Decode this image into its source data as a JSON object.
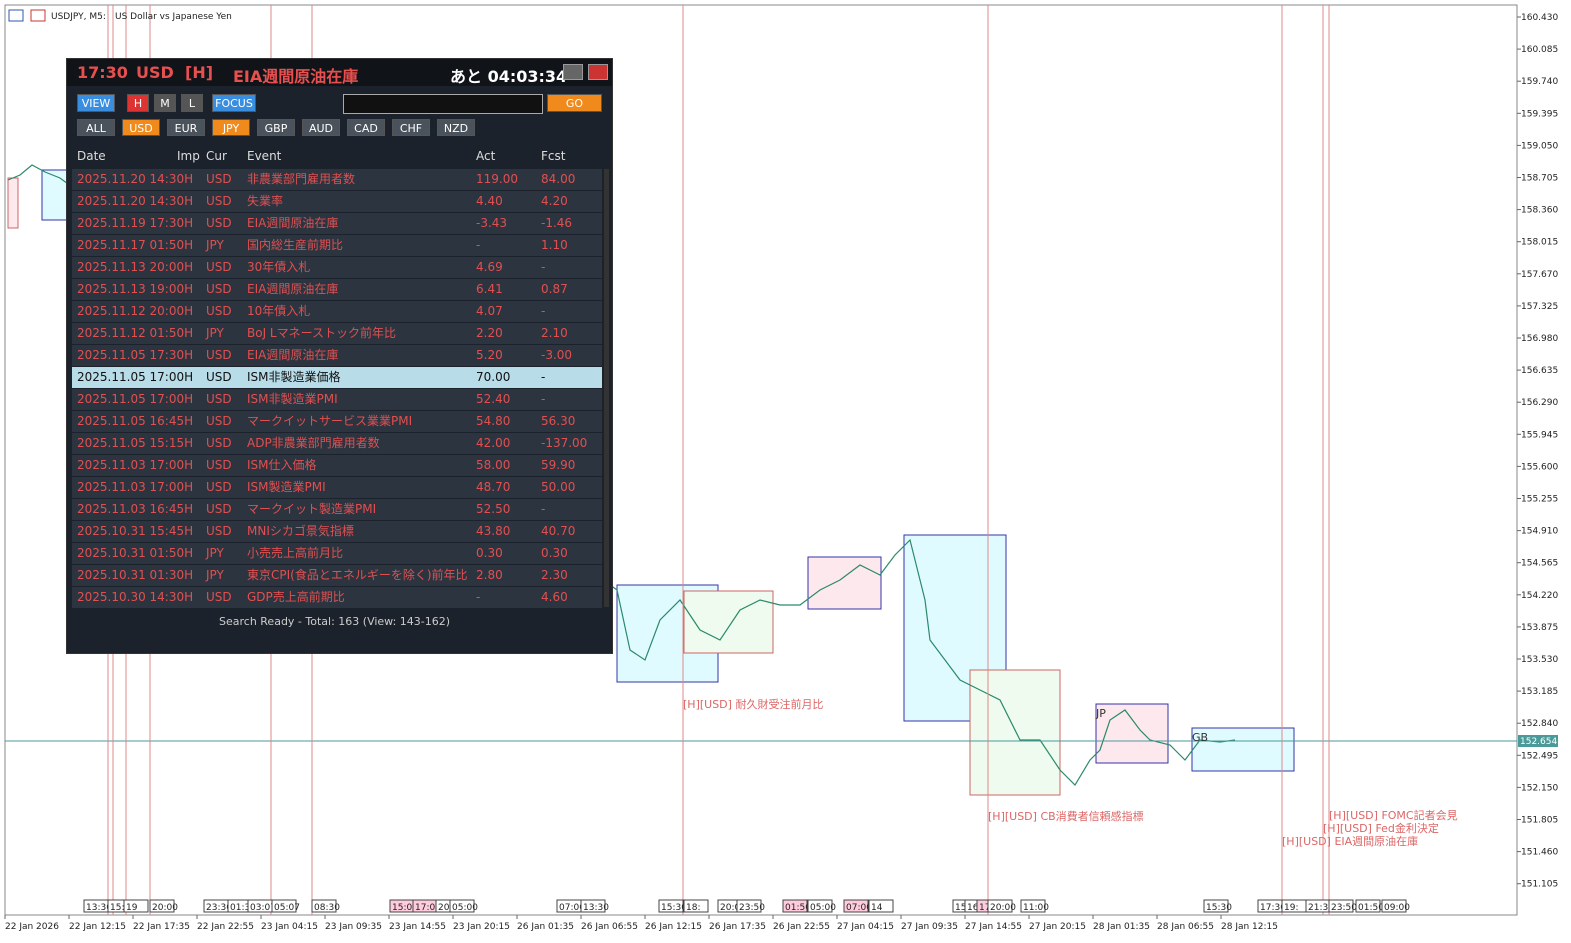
{
  "header": {
    "symbol": "USDJPY, M5:",
    "description": "US Dollar vs Japanese Yen"
  },
  "price_axis": {
    "labels": [
      "160.430",
      "160.085",
      "159.740",
      "159.395",
      "159.050",
      "158.705",
      "158.360",
      "158.015",
      "157.670",
      "157.325",
      "156.980",
      "156.635",
      "156.290",
      "155.945",
      "155.600",
      "155.255",
      "154.910",
      "154.565",
      "154.220",
      "153.875",
      "153.530",
      "153.185",
      "152.840",
      "152.495",
      "152.150",
      "151.805",
      "151.460",
      "151.105"
    ],
    "current": "152.654"
  },
  "time_axis": {
    "labels": [
      "22 Jan 2026",
      "22 Jan 12:15",
      "22 Jan 17:35",
      "22 Jan 22:55",
      "23 Jan 04:15",
      "23 Jan 09:35",
      "23 Jan 14:55",
      "23 Jan 20:15",
      "26 Jan 01:35",
      "26 Jan 06:55",
      "26 Jan 12:15",
      "26 Jan 17:35",
      "26 Jan 22:55",
      "27 Jan 04:15",
      "27 Jan 09:35",
      "27 Jan 14:55",
      "27 Jan 20:15",
      "28 Jan 01:35",
      "28 Jan 06:55",
      "28 Jan 12:15"
    ]
  },
  "event_markers": [
    "13:30",
    "15:0",
    "19",
    "20:00",
    "23:30",
    "01:3",
    "03:07",
    "05:07",
    "08:30",
    "15:00",
    "17:00",
    "20:00",
    "05:00",
    "07:00",
    "13:30",
    "15:30",
    "18:",
    "20:00",
    "23:50",
    "01:50",
    "05:00",
    "07:00",
    "14",
    "15",
    "16",
    "17:00",
    "20:00",
    "11:00",
    "15:30",
    "17:30",
    "19:",
    "21:30",
    "23:50",
    "01:50",
    "09:00"
  ],
  "annotations": [
    "[H][USD] 耐久財受注前月比",
    "[H][USD] CB消費者信頼感指標",
    "[H][USD] FOMC記者会見",
    "[H][USD] Fed金利決定",
    "[H][USD] EIA週間原油在庫",
    "JP",
    "GB"
  ],
  "panel": {
    "title": {
      "time": "17:30",
      "currency": "USD",
      "importance": "[H]",
      "event": "EIA週間原油在庫",
      "countdown": "あと 04:03:34"
    },
    "buttons": [
      "VIEW",
      "H",
      "M",
      "L",
      "FOCUS"
    ],
    "go": "GO",
    "currencies": [
      "ALL",
      "USD",
      "EUR",
      "JPY",
      "GBP",
      "AUD",
      "CAD",
      "CHF",
      "NZD"
    ],
    "columns": [
      "Date",
      "Imp",
      "Cur",
      "Event",
      "Act",
      "Fcst"
    ],
    "rows": [
      [
        "2025.11.20 14:30H",
        "USD",
        "非農業部門雇用者数",
        "119.00",
        "84.00"
      ],
      [
        "2025.11.20 14:30H",
        "USD",
        "失業率",
        "4.40",
        "4.20"
      ],
      [
        "2025.11.19 17:30H",
        "USD",
        "EIA週間原油在庫",
        "-3.43",
        "-1.46"
      ],
      [
        "2025.11.17 01:50H",
        "JPY",
        "国内総生産前期比",
        "-",
        "1.10"
      ],
      [
        "2025.11.13 20:00H",
        "USD",
        "30年債入札",
        "4.69",
        "-"
      ],
      [
        "2025.11.13 19:00H",
        "USD",
        "EIA週間原油在庫",
        "6.41",
        "0.87"
      ],
      [
        "2025.11.12 20:00H",
        "USD",
        "10年債入札",
        "4.07",
        "-"
      ],
      [
        "2025.11.12 01:50H",
        "JPY",
        "BoJ Lマネーストック前年比",
        "2.20",
        "2.10"
      ],
      [
        "2025.11.05 17:30H",
        "USD",
        "EIA週間原油在庫",
        "5.20",
        "-3.00"
      ],
      [
        "2025.11.05 17:00H",
        "USD",
        "ISM非製造業価格",
        "70.00",
        "-"
      ],
      [
        "2025.11.05 17:00H",
        "USD",
        "ISM非製造業PMI",
        "52.40",
        "-"
      ],
      [
        "2025.11.05 16:45H",
        "USD",
        "マークイットサービス業業PMI",
        "54.80",
        "56.30"
      ],
      [
        "2025.11.05 15:15H",
        "USD",
        "ADP非農業部門雇用者数",
        "42.00",
        "-137.00"
      ],
      [
        "2025.11.03 17:00H",
        "USD",
        "ISM仕入価格",
        "58.00",
        "59.90"
      ],
      [
        "2025.11.03 17:00H",
        "USD",
        "ISM製造業PMI",
        "48.70",
        "50.00"
      ],
      [
        "2025.11.03 16:45H",
        "USD",
        "マークイット製造業PMI",
        "52.50",
        "-"
      ],
      [
        "2025.10.31 15:45H",
        "USD",
        "MNIシカゴ景気指標",
        "43.80",
        "40.70"
      ],
      [
        "2025.10.31 01:50H",
        "JPY",
        "小売売上高前月比",
        "0.30",
        "0.30"
      ],
      [
        "2025.10.31 01:30H",
        "JPY",
        "東京CPI(食品とエネルギーを除く)前年比",
        "2.80",
        "2.30"
      ],
      [
        "2025.10.30 14:30H",
        "USD",
        "GDP売上高前期比",
        "-",
        "4.60"
      ]
    ],
    "status": "Search Ready - Total: 163 (View: 143-162)"
  }
}
